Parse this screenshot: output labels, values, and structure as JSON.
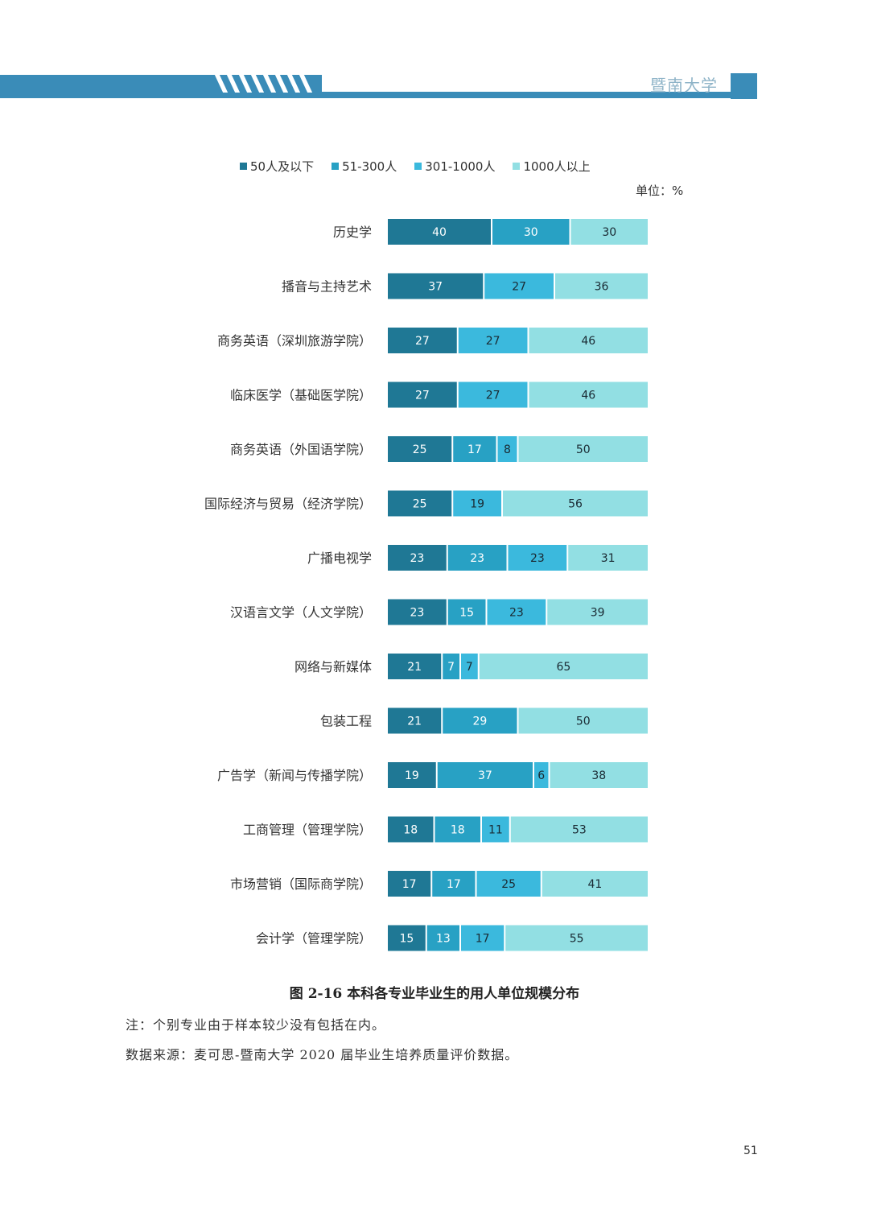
{
  "header": {
    "title": "暨南大学",
    "color": "#3a8cb8"
  },
  "chart_data": {
    "type": "bar",
    "orientation": "horizontal",
    "stacked": true,
    "unit": "单位：%",
    "legend_position": "top",
    "series_names": [
      "50人及以下",
      "51-300人",
      "301-1000人",
      "1000人以上"
    ],
    "colors": [
      "#1f7895",
      "#28a1c4",
      "#3bb9dd",
      "#92dfe3"
    ],
    "categories": [
      "历史学",
      "播音与主持艺术",
      "商务英语（深圳旅游学院）",
      "临床医学（基础医学院）",
      "商务英语（外国语学院）",
      "国际经济与贸易（经济学院）",
      "广播电视学",
      "汉语言文学（人文学院）",
      "网络与新媒体",
      "包装工程",
      "广告学（新闻与传播学院）",
      "工商管理（管理学院）",
      "市场营销（国际商学院）",
      "会计学（管理学院）"
    ],
    "series": [
      {
        "name": "50人及以下",
        "values": [
          40,
          37,
          27,
          27,
          25,
          25,
          23,
          23,
          21,
          21,
          19,
          18,
          17,
          15
        ]
      },
      {
        "name": "51-300人",
        "values": [
          30,
          0,
          0,
          0,
          17,
          0,
          23,
          15,
          7,
          29,
          37,
          18,
          17,
          13
        ]
      },
      {
        "name": "301-1000人",
        "values": [
          0,
          27,
          27,
          27,
          8,
          19,
          23,
          23,
          7,
          0,
          6,
          11,
          25,
          17
        ]
      },
      {
        "name": "1000人以上",
        "values": [
          30,
          36,
          46,
          46,
          50,
          56,
          31,
          39,
          65,
          50,
          38,
          53,
          41,
          55
        ]
      }
    ],
    "xlim": [
      0,
      100
    ],
    "grid": false
  },
  "caption": "图 2-16  本科各专业毕业生的用人单位规模分布",
  "notes": [
    "注：个别专业由于样本较少没有包括在内。",
    "数据来源：麦可思-暨南大学 2020 届毕业生培养质量评价数据。"
  ],
  "page_number": "51"
}
